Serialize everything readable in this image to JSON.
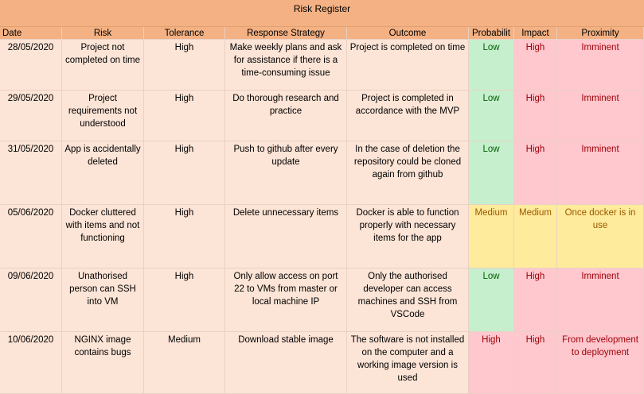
{
  "title": "Risk Register",
  "columns": [
    "Date",
    "Risk",
    "Tolerance",
    "Response Strategy",
    "Outcome",
    "Probabilit",
    "Impact",
    "Proximity"
  ],
  "rows": [
    {
      "cells": [
        "28/05/2020",
        "Project not completed on time",
        "High",
        "Make weekly plans and ask for assistance if there is a time-consuming issue",
        "Project is completed on time",
        "Low",
        "High",
        "Imminent"
      ],
      "fills": [
        "#c6efce",
        "#ffc7ce",
        "#ffc7ce"
      ],
      "text_colors": [
        "#006100",
        "#9c0006",
        "#9c0006"
      ]
    },
    {
      "cells": [
        "29/05/2020",
        "Project requirements not understood",
        "High",
        "Do thorough research and practice",
        "Project is completed in accordance with the MVP",
        "Low",
        "High",
        "Imminent"
      ],
      "fills": [
        "#c6efce",
        "#ffc7ce",
        "#ffc7ce"
      ],
      "text_colors": [
        "#006100",
        "#9c0006",
        "#9c0006"
      ]
    },
    {
      "cells": [
        "31/05/2020",
        "App is accidentally deleted",
        "High",
        "Push to github after every update",
        "In the case of deletion the repository could be cloned again from github",
        "Low",
        "High",
        "Imminent"
      ],
      "fills": [
        "#c6efce",
        "#ffc7ce",
        "#ffc7ce"
      ],
      "text_colors": [
        "#006100",
        "#9c0006",
        "#9c0006"
      ]
    },
    {
      "cells": [
        "05/06/2020",
        "Docker cluttered with items and not functioning",
        "High",
        "Delete unnecessary items",
        "Docker is able to function properly with necessary items for the app",
        "Medium",
        "Medium",
        "Once docker is in use"
      ],
      "fills": [
        "#ffeb9c",
        "#ffeb9c",
        "#ffeb9c"
      ],
      "text_colors": [
        "#9c5700",
        "#9c5700",
        "#9c5700"
      ]
    },
    {
      "cells": [
        "09/06/2020",
        "Unathorised person can SSH into VM",
        "High",
        "Only allow access on port 22 to VMs from master or local machine IP",
        "Only the authorised developer can access machines and SSH from VSCode",
        "Low",
        "High",
        "Imminent"
      ],
      "fills": [
        "#c6efce",
        "#ffc7ce",
        "#ffc7ce"
      ],
      "text_colors": [
        "#006100",
        "#9c0006",
        "#9c0006"
      ]
    },
    {
      "cells": [
        "10/06/2020",
        "NGINX image contains bugs",
        "Medium",
        "Download stable image",
        "The software is not installed on the computer and a working image version is used",
        "High",
        "High",
        "From development to deployment"
      ],
      "fills": [
        "#ffc7ce",
        "#ffc7ce",
        "#ffc7ce"
      ],
      "text_colors": [
        "#9c0006",
        "#9c0006",
        "#9c0006"
      ]
    }
  ]
}
